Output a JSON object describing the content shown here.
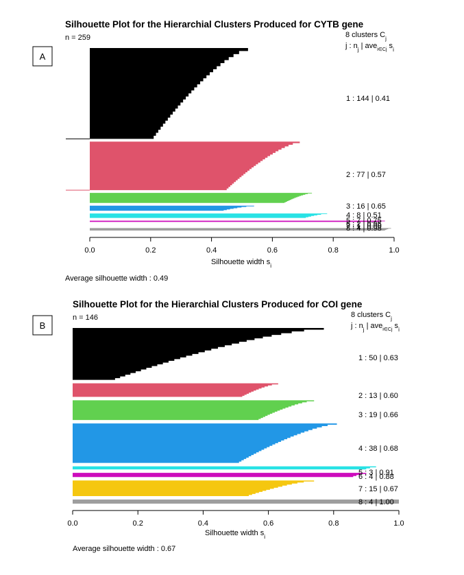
{
  "panels": [
    {
      "label": "A"
    },
    {
      "label": "B"
    }
  ],
  "chart_data": [
    {
      "type": "bar",
      "title": "Silhouette Plot for the Hierarchial Clusters Produced for CYTB gene",
      "n_label": "n = 259",
      "clusters_header": "8  clusters  C",
      "clusters_header_sub": "j",
      "columns_header": "j :  n",
      "columns_header_tail": " | ave",
      "columns_header_tail_sub": "i∈Cj",
      "columns_header_end": "  s",
      "columns_header_end_sub": "i",
      "xlabel": "Silhouette width s",
      "xlabel_sub": "i",
      "xlim": [
        0,
        1
      ],
      "xticks": [
        "0.0",
        "0.2",
        "0.4",
        "0.6",
        "0.8",
        "1.0"
      ],
      "average_text": "Average silhouette width :  0.49",
      "clusters": [
        {
          "j": 1,
          "n": 144,
          "ave": "0.41",
          "label": "1 :   144  |  0.41",
          "color": "#000000",
          "max": 0.52,
          "min": 0.21
        },
        {
          "j": 2,
          "n": 77,
          "ave": "0.57",
          "label": "2 :   77  |  0.57",
          "color": "#DF536B",
          "max": 0.69,
          "min": 0.45
        },
        {
          "j": 3,
          "n": 16,
          "ave": "0.65",
          "label": "3 :   16  |  0.65",
          "color": "#61D04F",
          "max": 0.73,
          "min": 0.64
        },
        {
          "j": 4,
          "n": 8,
          "ave": "0.51",
          "label": "4 :    8  |  0.51",
          "color": "#2297E6",
          "max": 0.54,
          "min": 0.44
        },
        {
          "j": 5,
          "n": 7,
          "ave": "0.75",
          "label": "5 :    7  |  0.75",
          "color": "#28E2E5",
          "max": 0.78,
          "min": 0.71
        },
        {
          "j": 6,
          "n": 2,
          "ave": "0.96",
          "label": "6 :    2  |  0.96",
          "color": "#CD0BBC",
          "max": 0.97,
          "min": 0.95
        },
        {
          "j": 7,
          "n": 1,
          "ave": "0.00",
          "label": "7 :    1  |  0.00",
          "color": "#F5C710",
          "max": 0.0,
          "min": 0.0
        },
        {
          "j": 8,
          "n": 4,
          "ave": "0.98",
          "label": "8 :    4  |  0.98",
          "color": "#9E9E9E",
          "max": 0.99,
          "min": 0.97
        }
      ]
    },
    {
      "type": "bar",
      "title": "Silhouette Plot for the Hierarchial Clusters Produced for COI gene",
      "n_label": "n = 146",
      "clusters_header": "8  clusters  C",
      "clusters_header_sub": "j",
      "columns_header": "j :  n",
      "columns_header_tail": " | ave",
      "columns_header_tail_sub": "i∈Cj",
      "columns_header_end": "  s",
      "columns_header_end_sub": "i",
      "xlabel": "Silhouette width s",
      "xlabel_sub": "i",
      "xlim": [
        0,
        1
      ],
      "xticks": [
        "0.0",
        "0.2",
        "0.4",
        "0.6",
        "0.8",
        "1.0"
      ],
      "average_text": "Average silhouette width :  0.67",
      "clusters": [
        {
          "j": 1,
          "n": 50,
          "ave": "0.63",
          "label": "1 :   50  |  0.63",
          "color": "#000000",
          "max": 0.77,
          "min": 0.13
        },
        {
          "j": 2,
          "n": 13,
          "ave": "0.60",
          "label": "2 :   13  |  0.60",
          "color": "#DF536B",
          "max": 0.63,
          "min": 0.52
        },
        {
          "j": 3,
          "n": 19,
          "ave": "0.66",
          "label": "3 :   19  |  0.66",
          "color": "#61D04F",
          "max": 0.74,
          "min": 0.57
        },
        {
          "j": 4,
          "n": 38,
          "ave": "0.68",
          "label": "4 :   38  |  0.68",
          "color": "#2297E6",
          "max": 0.81,
          "min": 0.51
        },
        {
          "j": 5,
          "n": 3,
          "ave": "0.91",
          "label": "5 :    3  |  0.91",
          "color": "#28E2E5",
          "max": 0.93,
          "min": 0.9
        },
        {
          "j": 6,
          "n": 4,
          "ave": "0.88",
          "label": "6 :    4  |  0.88",
          "color": "#CD0BBC",
          "max": 0.9,
          "min": 0.86
        },
        {
          "j": 7,
          "n": 15,
          "ave": "0.67",
          "label": "7 :   15  |  0.67",
          "color": "#F5C710",
          "max": 0.74,
          "min": 0.54
        },
        {
          "j": 8,
          "n": 4,
          "ave": "1.00",
          "label": "8 :    4  |  1.00",
          "color": "#9E9E9E",
          "max": 1.0,
          "min": 1.0
        }
      ]
    }
  ]
}
